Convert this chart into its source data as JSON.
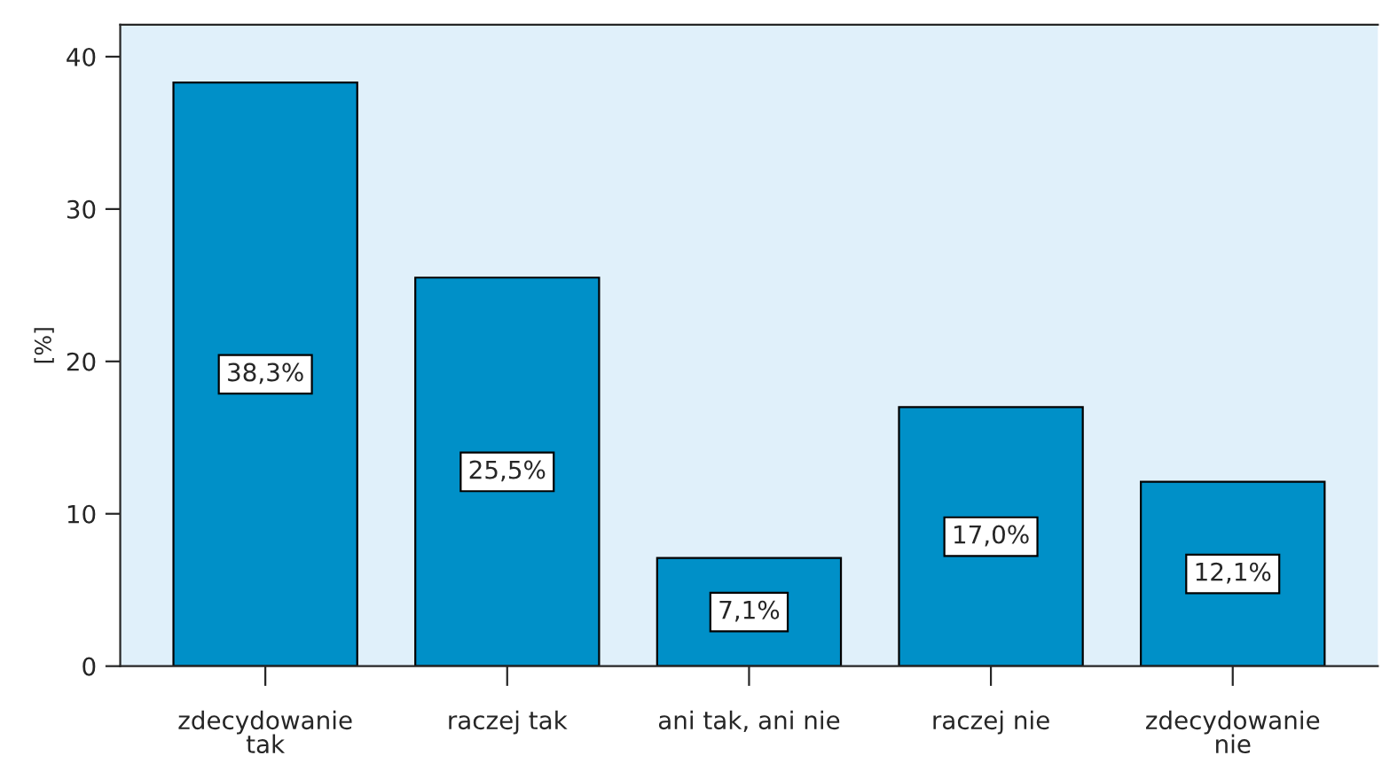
{
  "chart_data": {
    "type": "bar",
    "ylabel": "[%]",
    "categories": [
      "zdecydowanie\ntak",
      "raczej tak",
      "ani tak, ani nie",
      "raczej nie",
      "zdecydowanie\nnie"
    ],
    "values": [
      38.3,
      25.5,
      7.1,
      17.0,
      12.1
    ],
    "value_labels": [
      "38,3%",
      "25,5%",
      "7,1%",
      "17,0%",
      "12,1%"
    ],
    "color": "#0090c8",
    "ylim": [
      0,
      42.1
    ],
    "yticks": [
      0,
      10,
      20,
      30,
      40
    ],
    "grid": false
  }
}
